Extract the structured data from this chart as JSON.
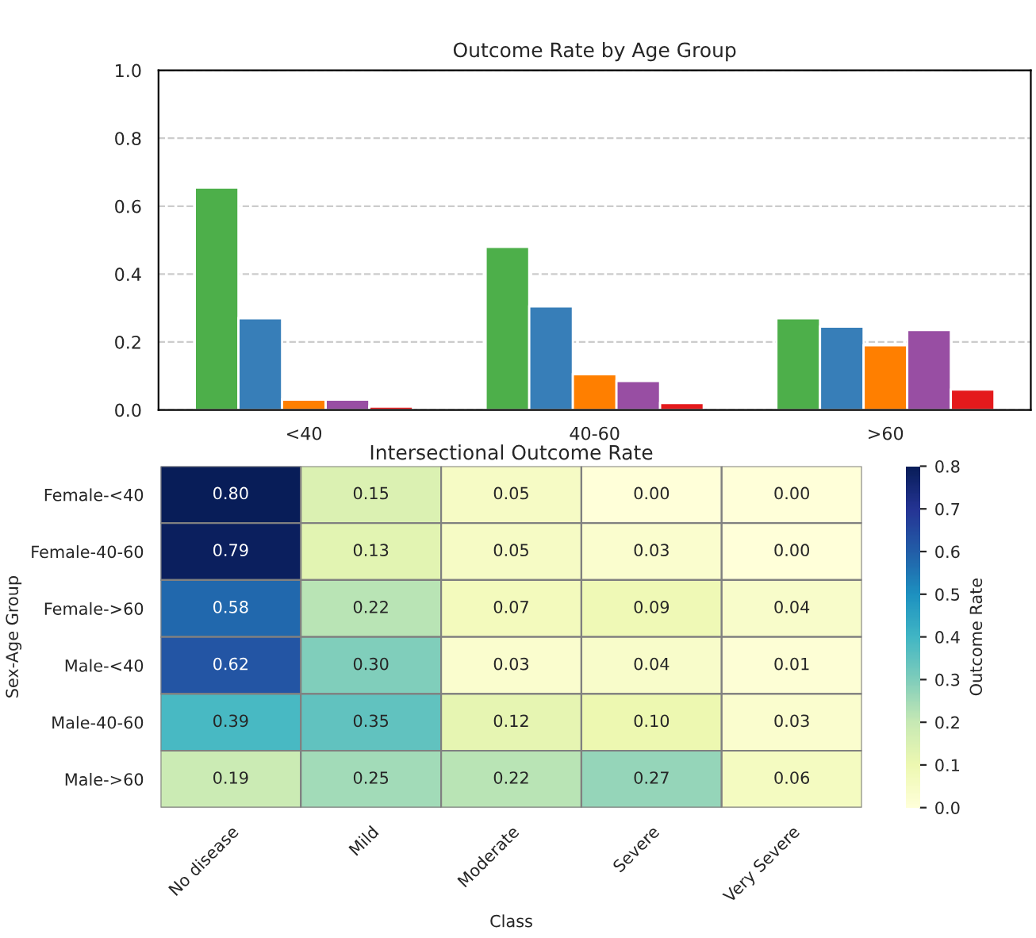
{
  "chart_data": [
    {
      "type": "bar",
      "title": "Outcome Rate by Age Group",
      "categories": [
        "<40",
        "40-60",
        ">60"
      ],
      "series": [
        {
          "color": "#4daf4a",
          "values": [
            0.655,
            0.48,
            0.27
          ]
        },
        {
          "color": "#377eb8",
          "values": [
            0.27,
            0.305,
            0.245
          ]
        },
        {
          "color": "#ff7f00",
          "values": [
            0.03,
            0.105,
            0.19
          ]
        },
        {
          "color": "#984ea3",
          "values": [
            0.03,
            0.085,
            0.235
          ]
        },
        {
          "color": "#e41a1c",
          "values": [
            0.01,
            0.02,
            0.06
          ]
        }
      ],
      "ylim": [
        0,
        1.0
      ],
      "yticks": [
        {
          "value": 0,
          "label": "0.0"
        },
        0.2,
        0.4,
        0.6,
        0.8,
        {
          "value": 1,
          "label": "1.0"
        }
      ],
      "grid": "y",
      "legend": false
    },
    {
      "type": "heatmap",
      "title": "Intersectional Outcome Rate",
      "xlabel": "Class",
      "ylabel": "Sex-Age Group",
      "clabel": "Outcome Rate",
      "categories": [
        "No disease",
        "Mild",
        "Moderate",
        "Severe",
        "Very Severe"
      ],
      "y_categories": [
        "Female-<40",
        "Female-40-60",
        "Female->60",
        "Male-<40",
        "Male-40-60",
        "Male->60"
      ],
      "cells": [
        [
          0.8,
          0.15,
          0.05,
          0.0,
          0.0
        ],
        [
          0.79,
          0.13,
          0.05,
          0.03,
          0.0
        ],
        [
          0.58,
          0.22,
          0.07,
          0.09,
          0.04
        ],
        [
          0.62,
          0.3,
          0.03,
          0.04,
          0.01
        ],
        [
          0.39,
          0.35,
          0.12,
          0.1,
          0.03
        ],
        [
          0.19,
          0.25,
          0.22,
          0.27,
          0.06
        ]
      ],
      "cell_labels": [
        [
          "0.80",
          "0.15",
          "0.05",
          "0.00",
          "0.00"
        ],
        [
          "0.79",
          "0.13",
          "0.05",
          "0.03",
          "0.00"
        ],
        [
          "0.58",
          "0.22",
          "0.07",
          "0.09",
          "0.04"
        ],
        [
          "0.62",
          "0.30",
          "0.03",
          "0.04",
          "0.01"
        ],
        [
          "0.39",
          "0.35",
          "0.12",
          "0.10",
          "0.03"
        ],
        [
          "0.19",
          "0.25",
          "0.22",
          "0.27",
          "0.06"
        ]
      ],
      "clim": [
        0,
        0.8
      ],
      "cticks": [
        {
          "value": 0,
          "label": "0.0"
        },
        0.1,
        0.2,
        0.3,
        0.4,
        0.5,
        0.6,
        0.7,
        0.8
      ],
      "data_labels": true
    }
  ]
}
